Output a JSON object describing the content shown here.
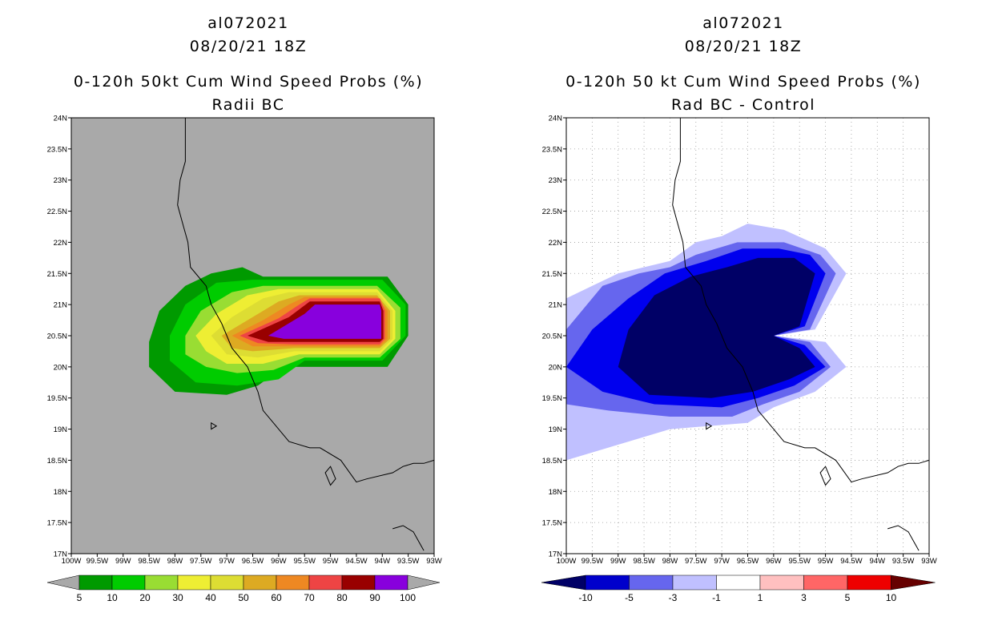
{
  "left_panel": {
    "storm_id": "al072021",
    "datetime": "08/20/21 18Z",
    "title_line1": "0-120h 50kt Cum Wind Speed Probs (%)",
    "title_line2": "Radii BC",
    "background_color": "#a9a9a9",
    "colorbar_labels": [
      "5",
      "10",
      "20",
      "30",
      "40",
      "50",
      "60",
      "70",
      "80",
      "90",
      "100"
    ],
    "colorbar_colors": [
      "#009a00",
      "#00cc00",
      "#99dd33",
      "#eeee33",
      "#dddd33",
      "#ddaa22",
      "#ee8822",
      "#ee4444",
      "#990000",
      "#8800dd"
    ]
  },
  "right_panel": {
    "storm_id": "al072021",
    "datetime": "08/20/21 18Z",
    "title_line1": "0-120h 50 kt Cum Wind Speed Probs (%)",
    "title_line2": "Rad BC - Control",
    "background_color": "#ffffff",
    "colorbar_labels": [
      "-10",
      "-5",
      "-3",
      "-1",
      "1",
      "3",
      "5",
      "10"
    ],
    "colorbar_colors": [
      "#0000cc",
      "#6666ee",
      "#c0c0ff",
      "#ffffff",
      "#ffc0c0",
      "#ff6666",
      "#ee0000"
    ],
    "colorbar_end_colors": [
      "#000066",
      "#660000"
    ]
  },
  "axes": {
    "lat_labels": [
      "24N",
      "23.5N",
      "23N",
      "22.5N",
      "22N",
      "21.5N",
      "21N",
      "20.5N",
      "20N",
      "19.5N",
      "19N",
      "18.5N",
      "18N",
      "17.5N",
      "17N"
    ],
    "lon_labels": [
      "100W",
      "99.5W",
      "99W",
      "98.5W",
      "98W",
      "97.5W",
      "97W",
      "96.5W",
      "96W",
      "95.5W",
      "95W",
      "94.5W",
      "94W",
      "93.5W",
      "93W"
    ]
  },
  "map_data": {
    "lat_range": [
      17,
      24
    ],
    "lon_range": [
      -100,
      -93
    ],
    "prob_contours": [
      {
        "level": 5,
        "ring": [
          [
            -98.5,
            20.4
          ],
          [
            -98.3,
            20.9
          ],
          [
            -97.8,
            21.3
          ],
          [
            -97.3,
            21.5
          ],
          [
            -96.7,
            21.6
          ],
          [
            -96.3,
            21.45
          ],
          [
            -93.9,
            21.45
          ],
          [
            -93.5,
            21.0
          ],
          [
            -93.5,
            20.5
          ],
          [
            -93.9,
            20.0
          ],
          [
            -95.9,
            20.0
          ],
          [
            -96.4,
            19.7
          ],
          [
            -97.0,
            19.55
          ],
          [
            -98.0,
            19.6
          ],
          [
            -98.5,
            20.0
          ]
        ]
      },
      {
        "level": 10,
        "ring": [
          [
            -98.1,
            20.5
          ],
          [
            -97.8,
            21.0
          ],
          [
            -97.2,
            21.35
          ],
          [
            -96.5,
            21.4
          ],
          [
            -94.0,
            21.4
          ],
          [
            -93.55,
            21.0
          ],
          [
            -93.55,
            20.5
          ],
          [
            -94.0,
            20.1
          ],
          [
            -95.5,
            20.1
          ],
          [
            -96.0,
            19.8
          ],
          [
            -96.8,
            19.7
          ],
          [
            -97.6,
            19.75
          ],
          [
            -98.1,
            20.1
          ]
        ]
      },
      {
        "level": 20,
        "ring": [
          [
            -97.8,
            20.5
          ],
          [
            -97.5,
            20.9
          ],
          [
            -96.9,
            21.2
          ],
          [
            -96.3,
            21.3
          ],
          [
            -94.1,
            21.3
          ],
          [
            -93.65,
            20.95
          ],
          [
            -93.65,
            20.45
          ],
          [
            -94.05,
            20.15
          ],
          [
            -95.5,
            20.15
          ],
          [
            -96.1,
            19.95
          ],
          [
            -96.8,
            19.9
          ],
          [
            -97.4,
            20.0
          ],
          [
            -97.8,
            20.2
          ]
        ]
      },
      {
        "level": 30,
        "ring": [
          [
            -97.6,
            20.5
          ],
          [
            -97.2,
            20.85
          ],
          [
            -96.6,
            21.15
          ],
          [
            -96.0,
            21.25
          ],
          [
            -94.1,
            21.25
          ],
          [
            -93.75,
            20.9
          ],
          [
            -93.75,
            20.45
          ],
          [
            -94.05,
            20.2
          ],
          [
            -95.6,
            20.2
          ],
          [
            -96.3,
            20.05
          ],
          [
            -97.0,
            20.05
          ],
          [
            -97.4,
            20.25
          ]
        ]
      },
      {
        "level": 40,
        "ring": [
          [
            -97.3,
            20.5
          ],
          [
            -96.9,
            20.8
          ],
          [
            -96.3,
            21.1
          ],
          [
            -95.8,
            21.2
          ],
          [
            -94.1,
            21.2
          ],
          [
            -93.8,
            20.9
          ],
          [
            -93.8,
            20.45
          ],
          [
            -94.05,
            20.25
          ],
          [
            -95.7,
            20.25
          ],
          [
            -96.4,
            20.15
          ],
          [
            -97.0,
            20.2
          ]
        ]
      },
      {
        "level": 50,
        "ring": [
          [
            -97.1,
            20.5
          ],
          [
            -96.6,
            20.75
          ],
          [
            -96.0,
            21.05
          ],
          [
            -95.6,
            21.15
          ],
          [
            -94.1,
            21.15
          ],
          [
            -93.85,
            20.9
          ],
          [
            -93.85,
            20.45
          ],
          [
            -94.05,
            20.3
          ],
          [
            -95.7,
            20.3
          ],
          [
            -96.5,
            20.25
          ],
          [
            -96.9,
            20.3
          ]
        ]
      },
      {
        "level": 60,
        "ring": [
          [
            -96.9,
            20.5
          ],
          [
            -96.3,
            20.75
          ],
          [
            -95.8,
            21.0
          ],
          [
            -95.5,
            21.12
          ],
          [
            -94.1,
            21.12
          ],
          [
            -93.9,
            20.9
          ],
          [
            -93.9,
            20.45
          ],
          [
            -94.05,
            20.33
          ],
          [
            -95.7,
            20.33
          ],
          [
            -96.5,
            20.33
          ]
        ]
      },
      {
        "level": 70,
        "ring": [
          [
            -96.75,
            20.5
          ],
          [
            -96.0,
            20.78
          ],
          [
            -95.6,
            21.0
          ],
          [
            -95.4,
            21.1
          ],
          [
            -94.05,
            21.1
          ],
          [
            -93.95,
            20.9
          ],
          [
            -93.95,
            20.45
          ],
          [
            -94.05,
            20.36
          ],
          [
            -95.7,
            20.36
          ],
          [
            -96.4,
            20.38
          ]
        ]
      },
      {
        "level": 80,
        "ring": [
          [
            -96.6,
            20.5
          ],
          [
            -95.8,
            20.8
          ],
          [
            -95.4,
            21.05
          ],
          [
            -94.05,
            21.05
          ],
          [
            -93.98,
            20.9
          ],
          [
            -93.98,
            20.45
          ],
          [
            -94.05,
            20.4
          ],
          [
            -96.2,
            20.4
          ]
        ]
      },
      {
        "level": 90,
        "ring": [
          [
            -96.2,
            20.5
          ],
          [
            -95.5,
            20.85
          ],
          [
            -95.3,
            21.0
          ],
          [
            -94.05,
            21.0
          ],
          [
            -94.02,
            20.9
          ],
          [
            -94.02,
            20.45
          ],
          [
            -95.9,
            20.45
          ]
        ]
      }
    ],
    "diff_contours": [
      {
        "level": -1,
        "ring": [
          [
            -100,
            18.5
          ],
          [
            -98.8,
            18.8
          ],
          [
            -98.0,
            19.0
          ],
          [
            -96.5,
            19.1
          ],
          [
            -96.0,
            19.35
          ],
          [
            -95.2,
            19.6
          ],
          [
            -94.6,
            20.0
          ],
          [
            -95.0,
            20.4
          ],
          [
            -96.0,
            20.5
          ],
          [
            -95.2,
            20.6
          ],
          [
            -94.6,
            21.5
          ],
          [
            -95.0,
            21.9
          ],
          [
            -95.8,
            22.2
          ],
          [
            -96.5,
            22.3
          ],
          [
            -97.0,
            22.1
          ],
          [
            -97.5,
            22.0
          ],
          [
            -98.0,
            21.7
          ],
          [
            -98.5,
            21.6
          ],
          [
            -99.0,
            21.5
          ],
          [
            -99.5,
            21.3
          ],
          [
            -100,
            21.1
          ]
        ]
      },
      {
        "level": -3,
        "ring": [
          [
            -100,
            19.4
          ],
          [
            -99.2,
            19.3
          ],
          [
            -98.0,
            19.2
          ],
          [
            -96.8,
            19.2
          ],
          [
            -96.2,
            19.4
          ],
          [
            -95.5,
            19.6
          ],
          [
            -94.9,
            20.0
          ],
          [
            -95.3,
            20.4
          ],
          [
            -96.0,
            20.5
          ],
          [
            -95.3,
            20.6
          ],
          [
            -94.8,
            21.5
          ],
          [
            -95.1,
            21.8
          ],
          [
            -95.8,
            22.0
          ],
          [
            -96.7,
            22.0
          ],
          [
            -97.5,
            21.8
          ],
          [
            -98.0,
            21.6
          ],
          [
            -98.6,
            21.5
          ],
          [
            -99.3,
            21.3
          ],
          [
            -100,
            20.6
          ]
        ]
      },
      {
        "level": -5,
        "ring": [
          [
            -100,
            20.0
          ],
          [
            -99.3,
            19.6
          ],
          [
            -98.3,
            19.4
          ],
          [
            -97.0,
            19.35
          ],
          [
            -96.3,
            19.5
          ],
          [
            -95.6,
            19.7
          ],
          [
            -95.0,
            20.0
          ],
          [
            -95.4,
            20.35
          ],
          [
            -96.0,
            20.5
          ],
          [
            -95.4,
            20.65
          ],
          [
            -95.0,
            21.5
          ],
          [
            -95.3,
            21.8
          ],
          [
            -95.9,
            21.9
          ],
          [
            -96.6,
            21.9
          ],
          [
            -97.3,
            21.7
          ],
          [
            -98.1,
            21.5
          ],
          [
            -98.8,
            21.1
          ],
          [
            -99.5,
            20.6
          ]
        ]
      },
      {
        "level": -10,
        "ring": [
          [
            -99.0,
            20.0
          ],
          [
            -98.4,
            19.55
          ],
          [
            -97.2,
            19.5
          ],
          [
            -96.4,
            19.6
          ],
          [
            -95.7,
            19.8
          ],
          [
            -95.2,
            20.0
          ],
          [
            -95.5,
            20.3
          ],
          [
            -96.0,
            20.5
          ],
          [
            -95.5,
            20.65
          ],
          [
            -95.2,
            21.5
          ],
          [
            -95.6,
            21.75
          ],
          [
            -96.3,
            21.75
          ],
          [
            -96.9,
            21.6
          ],
          [
            -97.6,
            21.45
          ],
          [
            -98.3,
            21.15
          ],
          [
            -98.8,
            20.6
          ]
        ]
      }
    ],
    "coastline": [
      [
        -97.8,
        24.0
      ],
      [
        -97.8,
        23.3
      ],
      [
        -97.9,
        23.0
      ],
      [
        -97.95,
        22.6
      ],
      [
        -97.85,
        22.3
      ],
      [
        -97.75,
        22.0
      ],
      [
        -97.7,
        21.6
      ],
      [
        -97.4,
        21.3
      ],
      [
        -97.3,
        21.0
      ],
      [
        -97.1,
        20.7
      ],
      [
        -96.9,
        20.3
      ],
      [
        -96.6,
        20.0
      ],
      [
        -96.4,
        19.6
      ],
      [
        -96.3,
        19.3
      ],
      [
        -96.1,
        19.1
      ],
      [
        -95.8,
        18.8
      ],
      [
        -95.4,
        18.7
      ],
      [
        -95.2,
        18.7
      ],
      [
        -94.8,
        18.5
      ],
      [
        -94.5,
        18.15
      ],
      [
        -94.3,
        18.2
      ],
      [
        -93.8,
        18.3
      ],
      [
        -93.6,
        18.4
      ],
      [
        -93.4,
        18.45
      ],
      [
        -93.2,
        18.45
      ],
      [
        -93.0,
        18.5
      ]
    ],
    "yucatan_tip": [
      [
        -93.8,
        17.4
      ],
      [
        -93.6,
        17.45
      ],
      [
        -93.4,
        17.35
      ],
      [
        -93.3,
        17.2
      ],
      [
        -93.2,
        17.05
      ]
    ],
    "islands": [
      [
        [
          -95.0,
          18.4
        ],
        [
          -94.9,
          18.2
        ],
        [
          -95.0,
          18.1
        ],
        [
          -95.1,
          18.3
        ]
      ],
      [
        [
          -97.3,
          19.1
        ],
        [
          -97.2,
          19.05
        ],
        [
          -97.3,
          19.0
        ]
      ]
    ]
  }
}
